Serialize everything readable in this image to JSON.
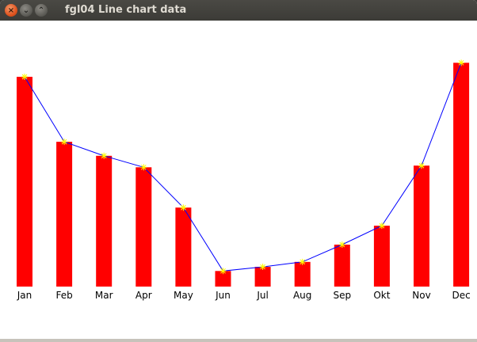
{
  "window": {
    "title": "fgl04 Line chart data",
    "close_glyph": "×",
    "minimize_glyph": "⌄",
    "maximize_glyph": "⌃"
  },
  "chart_data": {
    "type": "bar",
    "categories": [
      "Jan",
      "Feb",
      "Mar",
      "Apr",
      "May",
      "Jun",
      "Jul",
      "Aug",
      "Sep",
      "Okt",
      "Nov",
      "Dec"
    ],
    "series": [
      {
        "type": "bar",
        "values": [
          255,
          176,
          159,
          145,
          96,
          19,
          24,
          30,
          51,
          74,
          147,
          272
        ],
        "color": "#ff0000"
      },
      {
        "type": "line",
        "values": [
          255,
          176,
          159,
          145,
          96,
          19,
          24,
          30,
          51,
          74,
          147,
          272
        ],
        "color": "#0000ff",
        "marker_color": "#ffff00"
      }
    ],
    "ylim": [
      0,
      280
    ],
    "grid": false
  }
}
